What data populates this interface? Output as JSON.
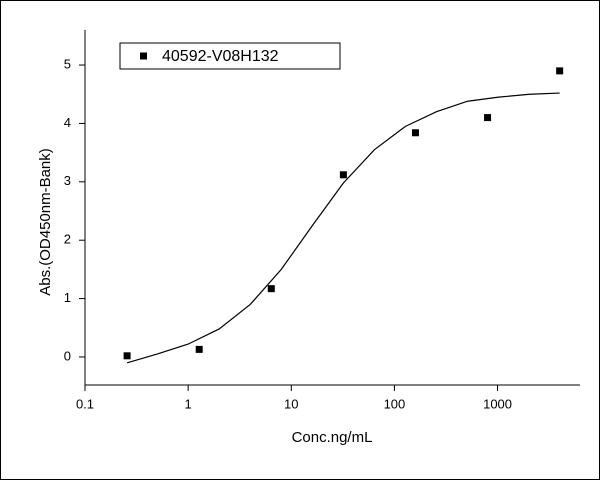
{
  "chart_data": {
    "type": "scatter",
    "x_label": "Conc.ng/mL",
    "y_label": "Abs.(OD450nm-Bank)",
    "x_scale": "log",
    "legend": "top-left",
    "series": [
      {
        "name": "40592-V08H132",
        "color": "#000000",
        "x": [
          0.256,
          1.28,
          6.4,
          32,
          160,
          800,
          4000
        ],
        "values": [
          0.02,
          0.13,
          1.17,
          3.12,
          3.84,
          4.1,
          4.9
        ]
      }
    ],
    "curve": {
      "color": "#000000",
      "x": [
        0.256,
        0.5,
        1,
        2,
        4,
        8,
        16,
        32,
        64,
        128,
        256,
        512,
        1024,
        2048,
        4000
      ],
      "values": [
        -0.1,
        0.05,
        0.22,
        0.48,
        0.9,
        1.5,
        2.25,
        2.98,
        3.55,
        3.95,
        4.2,
        4.38,
        4.45,
        4.5,
        4.52
      ]
    },
    "xlim": [
      0.1,
      6300
    ],
    "ylim": [
      -0.48,
      5.6
    ],
    "xticks": [
      0.1,
      1,
      10,
      100,
      1000
    ],
    "yticks": [
      0,
      1,
      2,
      3,
      4,
      5
    ]
  }
}
